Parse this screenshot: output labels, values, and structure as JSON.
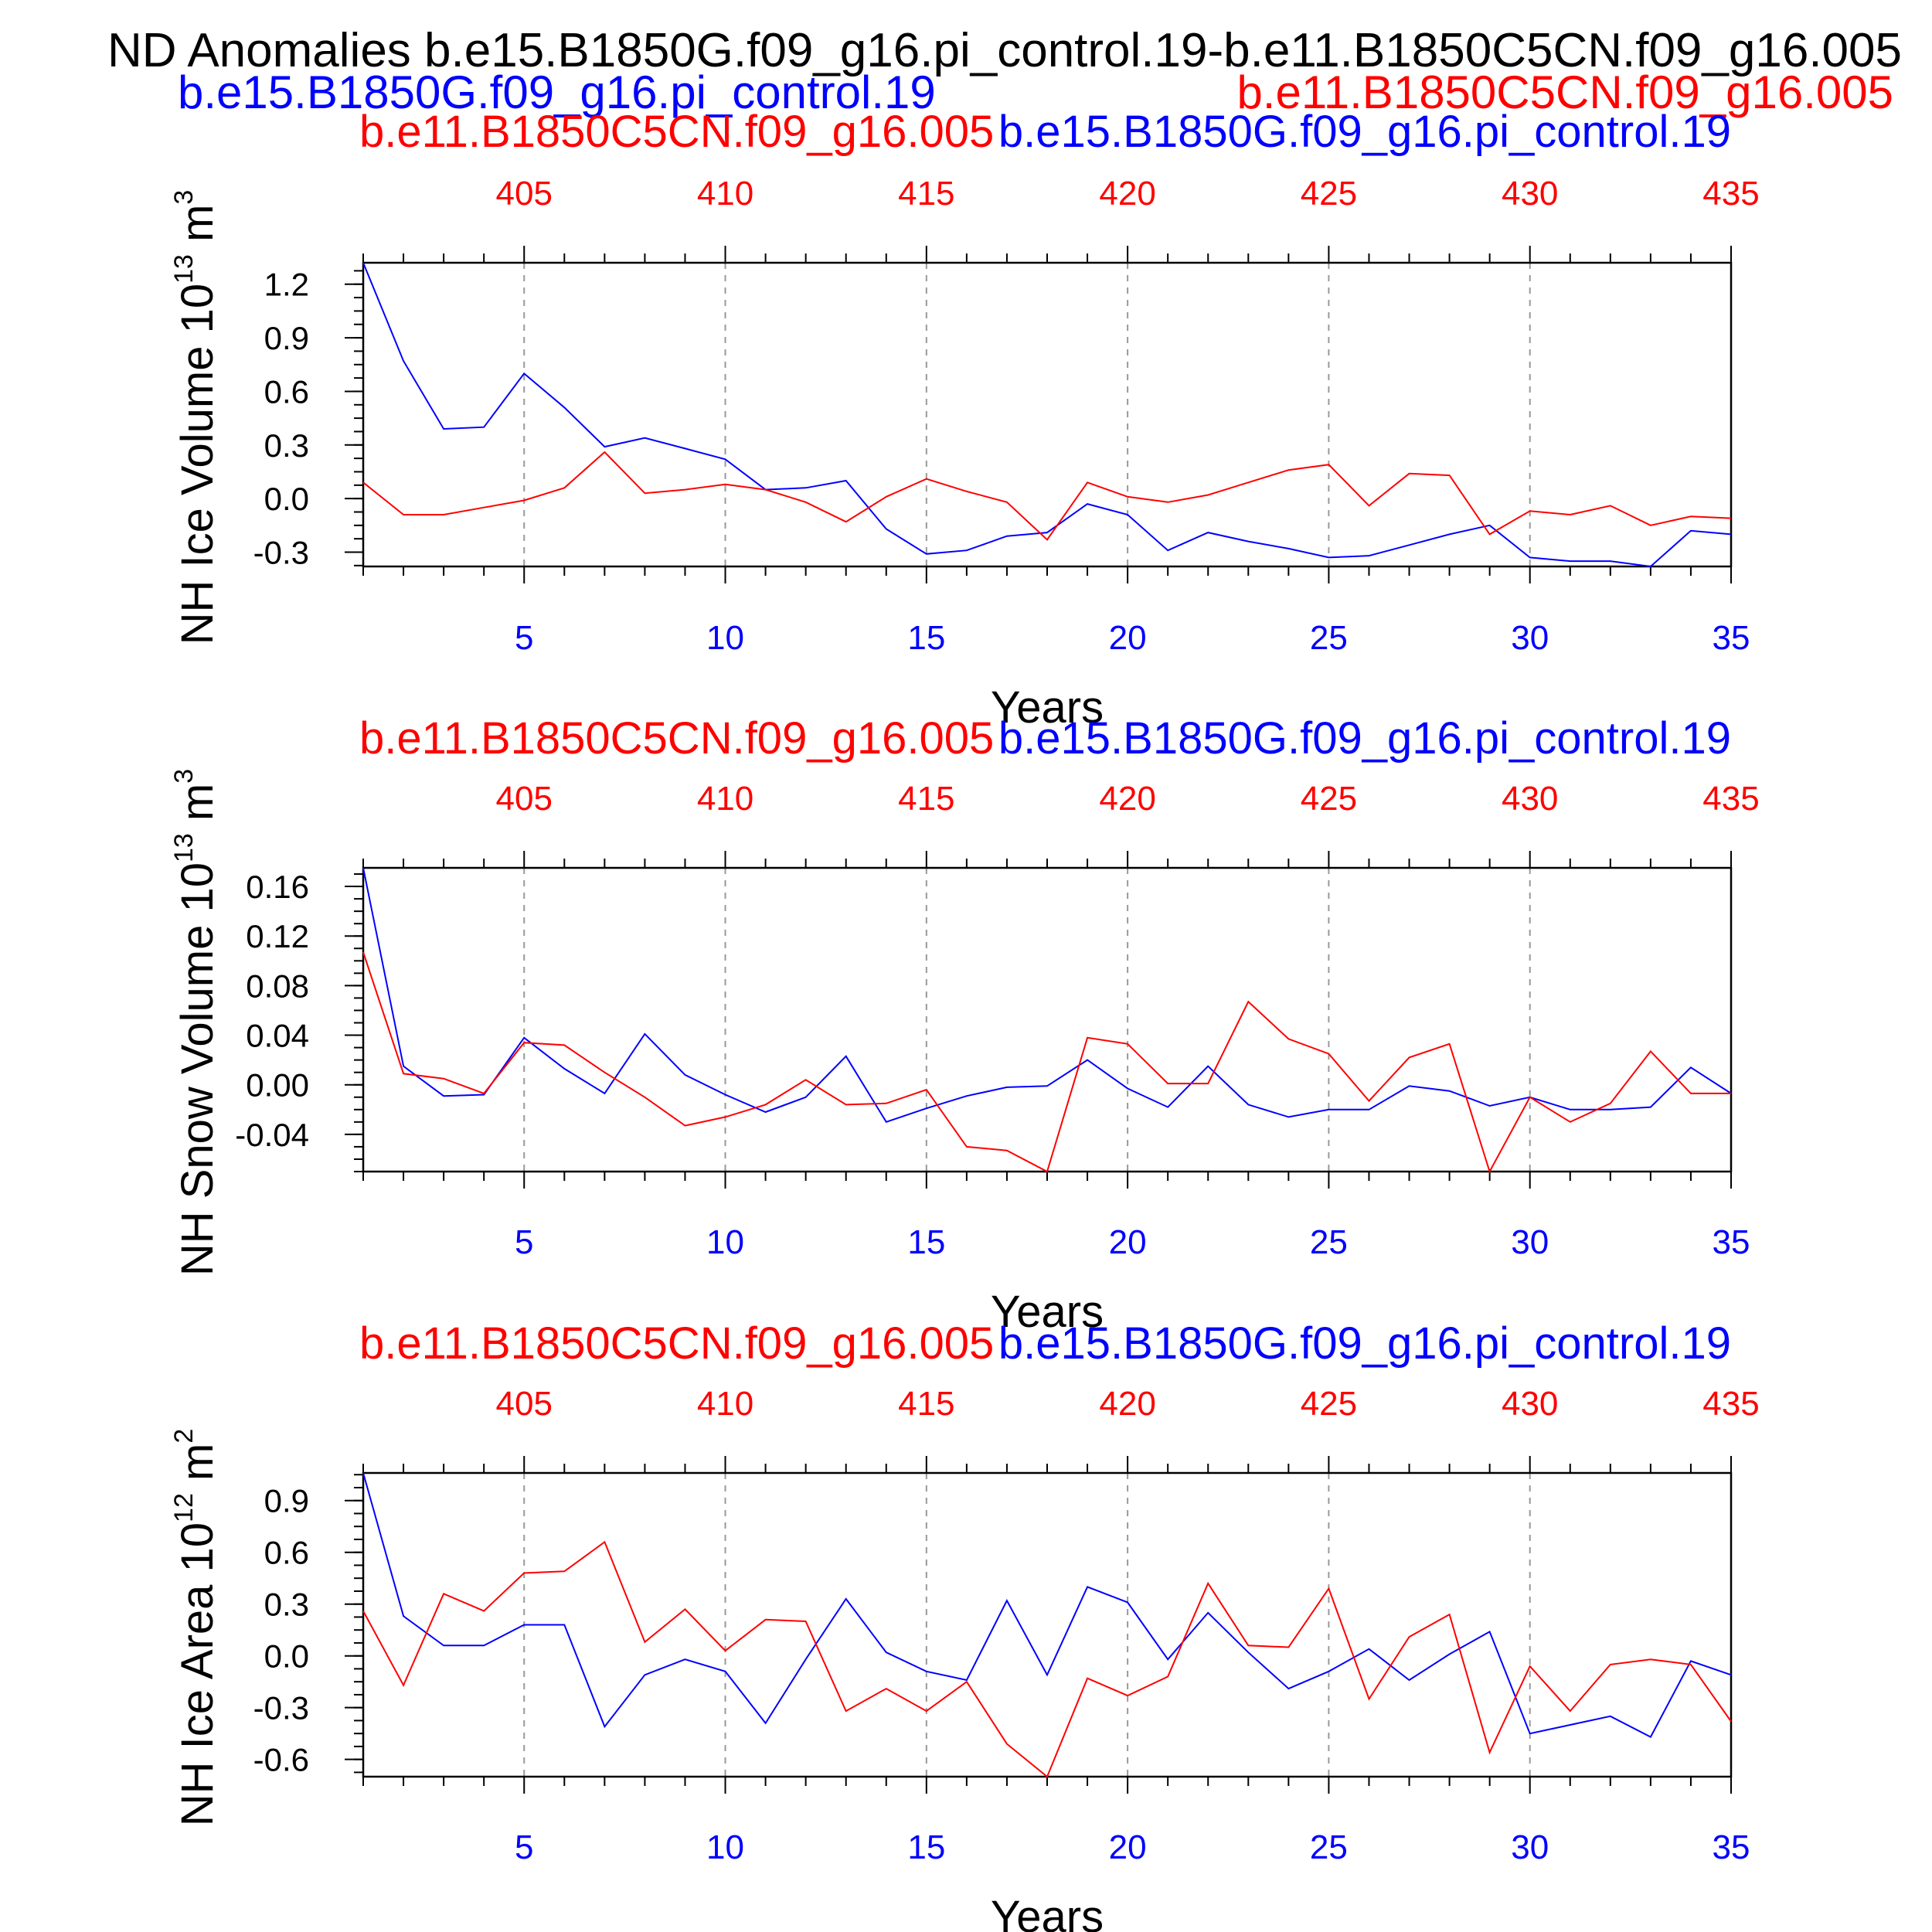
{
  "page": {
    "main_title": "ND Anomalies b.e15.B1850G.f09_g16.pi_control.19-b.e11.B1850C5CN.f09_g16.005",
    "header_blue": "b.e15.B1850G.f09_g16.pi_control.19",
    "header_red": "b.e11.B1850C5CN.f09_g16.005"
  },
  "colors": {
    "blue": "#0000ff",
    "red": "#ff0000",
    "black": "#000000",
    "grid": "#999999"
  },
  "chart_data": [
    {
      "type": "line",
      "ylabel": "NH Ice Volume",
      "ylabel_unit": "10",
      "ylabel_unit_exp": "13",
      "ylabel_unit_m": "m",
      "ylabel_unit_m_exp": "3",
      "xlabel": "Years",
      "top_label_red": "b.e11.B1850C5CN.f09_g16.005",
      "top_label_blue": "b.e15.B1850G.f09_g16.pi_control.19",
      "xlim": [
        1,
        35
      ],
      "ylim": [
        -0.38,
        1.32
      ],
      "yticks": [
        -0.3,
        0.0,
        0.3,
        0.6,
        0.9,
        1.2
      ],
      "ytick_labels": [
        "-0.3",
        "0.0",
        "0.3",
        "0.6",
        "0.9",
        "1.2"
      ],
      "yminor": 0.075,
      "x_bottom_ticks": [
        5,
        10,
        15,
        20,
        25,
        30,
        35
      ],
      "x_bottom_labels": [
        "5",
        "10",
        "15",
        "20",
        "25",
        "30",
        "35"
      ],
      "x_top_labels": [
        "405",
        "410",
        "415",
        "420",
        "425",
        "430",
        "435"
      ],
      "grid_x": true,
      "x": [
        1,
        2,
        3,
        4,
        5,
        6,
        7,
        8,
        9,
        10,
        11,
        12,
        13,
        14,
        15,
        16,
        17,
        18,
        19,
        20,
        21,
        22,
        23,
        24,
        25,
        26,
        27,
        28,
        29,
        30,
        31,
        32,
        33,
        34,
        35
      ],
      "series": [
        {
          "name": "b.e15.B1850G.f09_g16.pi_control.19",
          "color": "#0000ff",
          "values": [
            1.32,
            0.77,
            0.39,
            0.4,
            0.7,
            0.51,
            0.29,
            0.34,
            0.28,
            0.22,
            0.05,
            0.06,
            0.1,
            -0.17,
            -0.31,
            -0.29,
            -0.21,
            -0.19,
            -0.03,
            -0.09,
            -0.29,
            -0.19,
            -0.24,
            -0.28,
            -0.33,
            -0.32,
            -0.26,
            -0.2,
            -0.15,
            -0.33,
            -0.35,
            -0.35,
            -0.38,
            -0.18,
            -0.2
          ]
        },
        {
          "name": "b.e11.B1850C5CN.f09_g16.005",
          "color": "#ff0000",
          "values": [
            0.09,
            -0.09,
            -0.09,
            -0.05,
            -0.01,
            0.06,
            0.26,
            0.03,
            0.05,
            0.08,
            0.05,
            -0.02,
            -0.13,
            0.01,
            0.11,
            0.04,
            -0.02,
            -0.23,
            0.09,
            0.01,
            -0.02,
            0.02,
            0.09,
            0.16,
            0.19,
            -0.04,
            0.14,
            0.13,
            -0.2,
            -0.07,
            -0.09,
            -0.04,
            -0.15,
            -0.1,
            -0.11
          ]
        }
      ]
    },
    {
      "type": "line",
      "ylabel": "NH Snow Volume",
      "ylabel_unit": "10",
      "ylabel_unit_exp": "13",
      "ylabel_unit_m": "m",
      "ylabel_unit_m_exp": "3",
      "xlabel": "Years",
      "top_label_red": "b.e11.B1850C5CN.f09_g16.005",
      "top_label_blue": "b.e15.B1850G.f09_g16.pi_control.19",
      "xlim": [
        1,
        35
      ],
      "ylim": [
        -0.07,
        0.175
      ],
      "yticks": [
        -0.04,
        0.0,
        0.04,
        0.08,
        0.12,
        0.16
      ],
      "ytick_labels": [
        "-0.04",
        "0.00",
        "0.04",
        "0.08",
        "0.12",
        "0.16"
      ],
      "yminor": 0.01,
      "x_bottom_ticks": [
        5,
        10,
        15,
        20,
        25,
        30,
        35
      ],
      "x_bottom_labels": [
        "5",
        "10",
        "15",
        "20",
        "25",
        "30",
        "35"
      ],
      "x_top_labels": [
        "405",
        "410",
        "415",
        "420",
        "425",
        "430",
        "435"
      ],
      "grid_x": true,
      "x": [
        1,
        2,
        3,
        4,
        5,
        6,
        7,
        8,
        9,
        10,
        11,
        12,
        13,
        14,
        15,
        16,
        17,
        18,
        19,
        20,
        21,
        22,
        23,
        24,
        25,
        26,
        27,
        28,
        29,
        30,
        31,
        32,
        33,
        34,
        35
      ],
      "series": [
        {
          "name": "b.e15.B1850G.f09_g16.pi_control.19",
          "color": "#0000ff",
          "values": [
            0.175,
            0.015,
            -0.009,
            -0.008,
            0.038,
            0.013,
            -0.007,
            0.041,
            0.008,
            -0.008,
            -0.022,
            -0.01,
            0.023,
            -0.03,
            -0.019,
            -0.009,
            -0.002,
            -0.001,
            0.02,
            -0.003,
            -0.018,
            0.015,
            -0.016,
            -0.026,
            -0.02,
            -0.02,
            -0.001,
            -0.005,
            -0.017,
            -0.01,
            -0.02,
            -0.02,
            -0.018,
            0.014,
            -0.007
          ]
        },
        {
          "name": "b.e11.B1850C5CN.f09_g16.005",
          "color": "#ff0000",
          "values": [
            0.107,
            0.009,
            0.005,
            -0.007,
            0.034,
            0.032,
            0.01,
            -0.01,
            -0.033,
            -0.026,
            -0.016,
            0.004,
            -0.016,
            -0.015,
            -0.004,
            -0.05,
            -0.053,
            -0.07,
            0.038,
            0.033,
            0.001,
            0.001,
            0.067,
            0.037,
            0.025,
            -0.013,
            0.022,
            0.033,
            -0.07,
            -0.01,
            -0.03,
            -0.015,
            0.027,
            -0.007,
            -0.007
          ]
        }
      ]
    },
    {
      "type": "line",
      "ylabel": "NH Ice Area",
      "ylabel_unit": "10",
      "ylabel_unit_exp": "12",
      "ylabel_unit_m": "m",
      "ylabel_unit_m_exp": "2",
      "xlabel": "Years",
      "top_label_red": "b.e11.B1850C5CN.f09_g16.005",
      "top_label_blue": "b.e15.B1850G.f09_g16.pi_control.19",
      "xlim": [
        1,
        35
      ],
      "ylim": [
        -0.7,
        1.06
      ],
      "yticks": [
        -0.6,
        -0.3,
        0.0,
        0.3,
        0.6,
        0.9
      ],
      "ytick_labels": [
        "-0.6",
        "-0.3",
        "0.0",
        "0.3",
        "0.6",
        "0.9"
      ],
      "yminor": 0.075,
      "x_bottom_ticks": [
        5,
        10,
        15,
        20,
        25,
        30,
        35
      ],
      "x_bottom_labels": [
        "5",
        "10",
        "15",
        "20",
        "25",
        "30",
        "35"
      ],
      "x_top_labels": [
        "405",
        "410",
        "415",
        "420",
        "425",
        "430",
        "435"
      ],
      "grid_x": true,
      "x": [
        1,
        2,
        3,
        4,
        5,
        6,
        7,
        8,
        9,
        10,
        11,
        12,
        13,
        14,
        15,
        16,
        17,
        18,
        19,
        20,
        21,
        22,
        23,
        24,
        25,
        26,
        27,
        28,
        29,
        30,
        31,
        32,
        33,
        34,
        35
      ],
      "series": [
        {
          "name": "b.e15.B1850G.f09_g16.pi_control.19",
          "color": "#0000ff",
          "values": [
            1.06,
            0.23,
            0.06,
            0.06,
            0.18,
            0.18,
            -0.41,
            -0.11,
            -0.02,
            -0.09,
            -0.39,
            -0.02,
            0.33,
            0.02,
            -0.09,
            -0.14,
            0.32,
            -0.11,
            0.4,
            0.31,
            -0.02,
            0.25,
            0.02,
            -0.19,
            -0.09,
            0.04,
            -0.14,
            0.01,
            0.14,
            -0.45,
            -0.4,
            -0.35,
            -0.47,
            -0.03,
            -0.11
          ]
        },
        {
          "name": "b.e11.B1850C5CN.f09_g16.005",
          "color": "#ff0000",
          "values": [
            0.26,
            -0.17,
            0.36,
            0.26,
            0.48,
            0.49,
            0.66,
            0.08,
            0.27,
            0.03,
            0.21,
            0.2,
            -0.32,
            -0.19,
            -0.32,
            -0.15,
            -0.51,
            -0.7,
            -0.13,
            -0.23,
            -0.12,
            0.42,
            0.06,
            0.05,
            0.39,
            -0.25,
            0.11,
            0.24,
            -0.56,
            -0.06,
            -0.32,
            -0.05,
            -0.02,
            -0.05,
            -0.38
          ]
        }
      ]
    }
  ]
}
